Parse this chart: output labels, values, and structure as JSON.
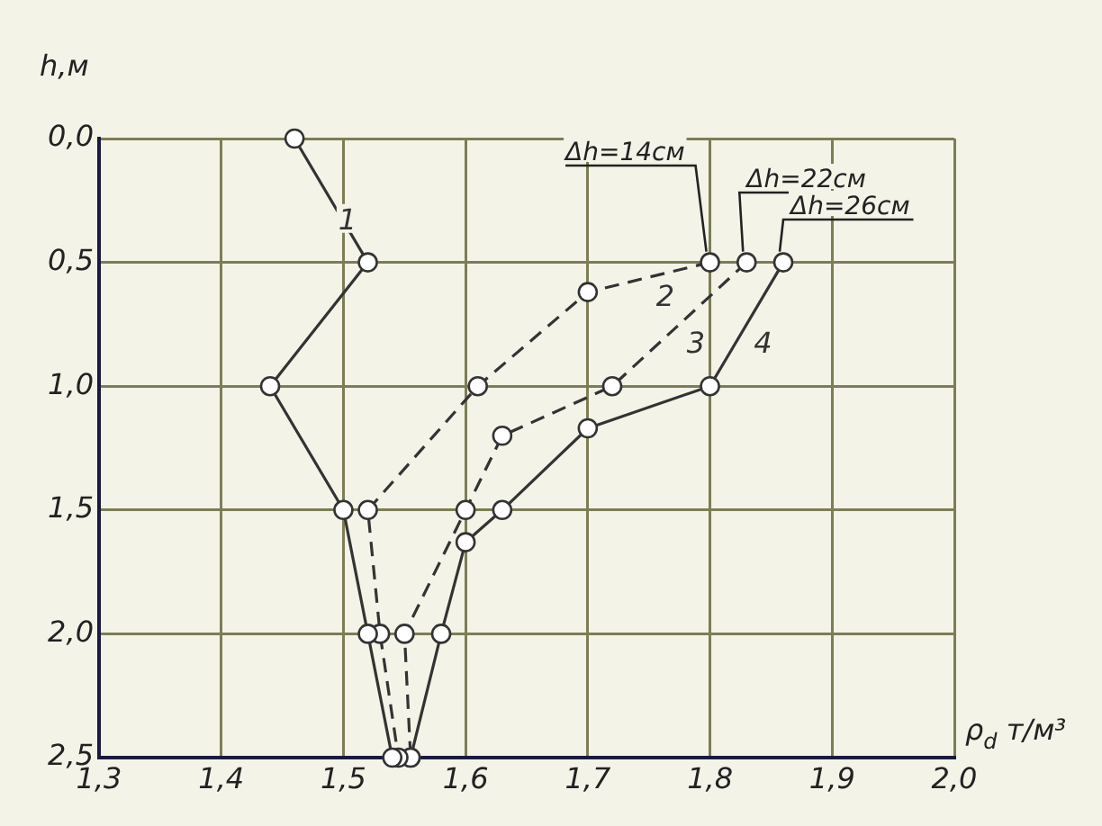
{
  "chart_data": {
    "type": "line",
    "xlabel": "ρ$_{d}$ т/м³",
    "ylabel": "h,м",
    "xlim": [
      1.3,
      2.0
    ],
    "xticks": [
      {
        "value": 1.3,
        "label": "1,3"
      },
      {
        "value": 1.4,
        "label": "1,4"
      },
      {
        "value": 1.5,
        "label": "1,5"
      },
      {
        "value": 1.6,
        "label": "1,6"
      },
      {
        "value": 1.7,
        "label": "1,7"
      },
      {
        "value": 1.8,
        "label": "1,8"
      },
      {
        "value": 1.9,
        "label": "1,9"
      },
      {
        "value": 2.0,
        "label": "2,0"
      }
    ],
    "ylim": [
      2.5,
      0.0
    ],
    "yticks": [
      {
        "value": 0,
        "label": "0,0"
      },
      {
        "value": 0.5,
        "label": "0,5"
      },
      {
        "value": 1.0,
        "label": "1,0"
      },
      {
        "value": 1.5,
        "label": "1,5"
      },
      {
        "value": 2.0,
        "label": "2,0"
      },
      {
        "value": 2.5,
        "label": "2,5"
      }
    ],
    "grid": true,
    "legend": false,
    "marker": "circle",
    "series": [
      {
        "name": "1",
        "color": "#333333",
        "line_style": "solid",
        "x": [
          1.46,
          1.52,
          1.44,
          1.5,
          1.52,
          1.54
        ],
        "values": [
          0.0,
          0.5,
          1.0,
          1.5,
          2.0,
          2.5
        ]
      },
      {
        "name": "2",
        "color": "#333333",
        "line_style": "dashed",
        "x": [
          1.8,
          1.7,
          1.61,
          1.52,
          1.53,
          1.545
        ],
        "values": [
          0.5,
          0.62,
          1.0,
          1.5,
          2.0,
          2.5
        ]
      },
      {
        "name": "3",
        "color": "#333333",
        "line_style": "dashed",
        "x": [
          1.83,
          1.72,
          1.63,
          1.6,
          1.55,
          1.555
        ],
        "values": [
          0.5,
          1.0,
          1.2,
          1.5,
          2.0,
          2.5
        ]
      },
      {
        "name": "4",
        "color": "#333333",
        "line_style": "solid",
        "x": [
          1.86,
          1.8,
          1.7,
          1.63,
          1.6,
          1.58,
          1.555
        ],
        "values": [
          0.5,
          1.0,
          1.17,
          1.5,
          1.63,
          2.0,
          2.5
        ]
      }
    ],
    "annotations": [
      {
        "text": "Δh=14см",
        "x": 1.8,
        "y": 0.5
      },
      {
        "text": "Δh=22см",
        "x": 1.83,
        "y": 0.5
      },
      {
        "text": "Δh=26см",
        "x": 1.86,
        "y": 0.5
      }
    ]
  }
}
